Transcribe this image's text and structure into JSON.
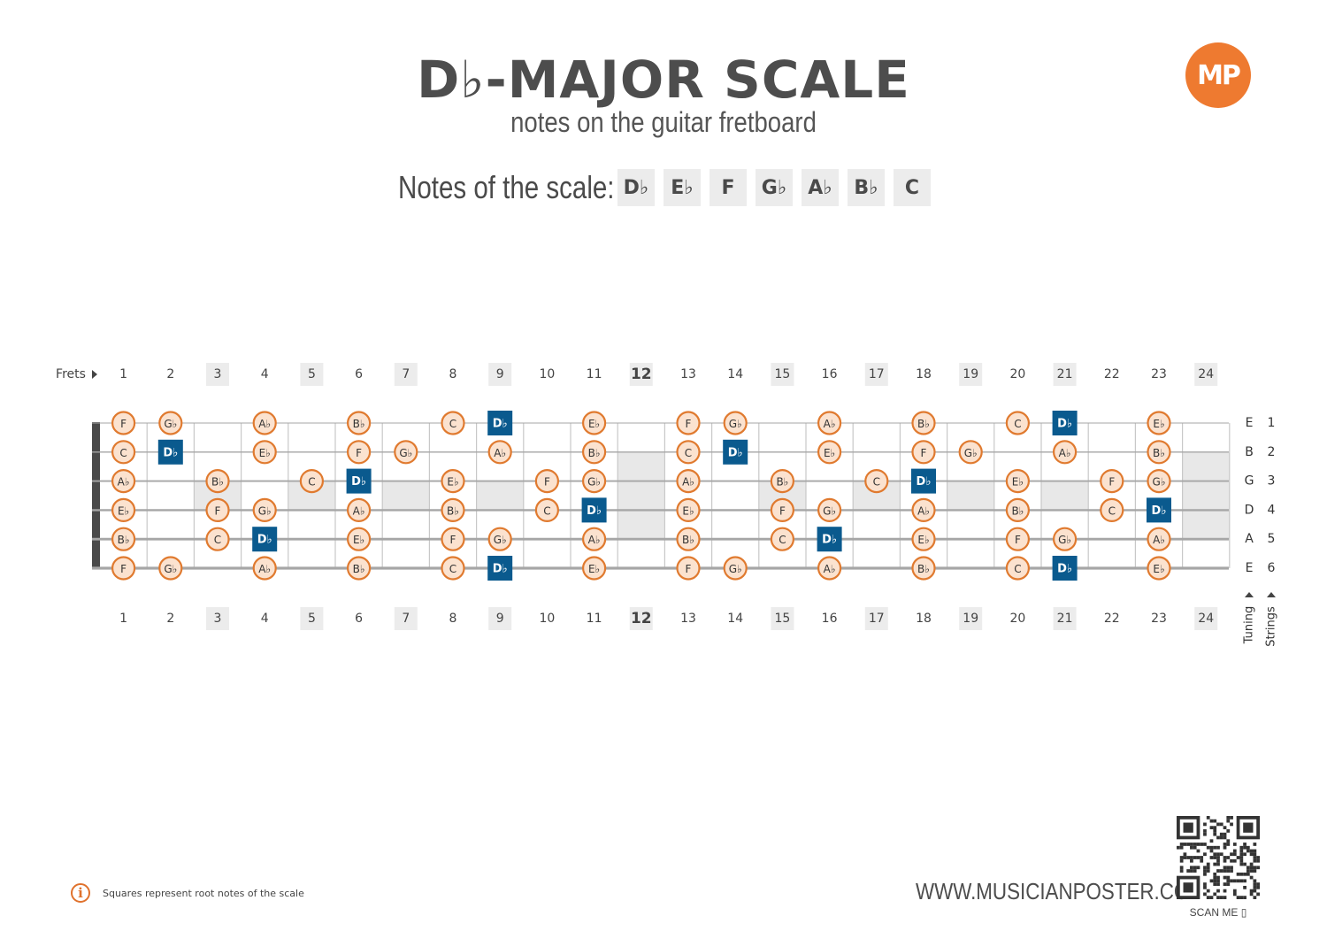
{
  "title": "D♭-MAJOR SCALE",
  "subtitle": "notes on the guitar fretboard",
  "logo_text": "MP",
  "scale": {
    "label": "Notes of the scale:",
    "notes": [
      "D♭",
      "E♭",
      "F",
      "G♭",
      "A♭",
      "B♭",
      "C"
    ]
  },
  "fretboard": {
    "frets_label": "Frets",
    "fret_numbers": [
      "1",
      "2",
      "3",
      "4",
      "5",
      "6",
      "7",
      "8",
      "9",
      "10",
      "11",
      "12",
      "13",
      "14",
      "15",
      "16",
      "17",
      "18",
      "19",
      "20",
      "21",
      "22",
      "23",
      "24"
    ],
    "highlighted_frets": [
      3,
      5,
      7,
      9,
      12,
      15,
      17,
      19,
      21,
      24
    ],
    "inlay_frets": [
      3,
      5,
      7,
      9,
      12,
      15,
      17,
      19,
      21,
      24
    ],
    "double_inlay_frets": [
      12,
      24
    ],
    "strings": [
      {
        "tuning": "E",
        "number": "1",
        "notes": [
          "F",
          "G♭",
          "",
          "A♭",
          "",
          "B♭",
          "",
          "C",
          "D♭",
          "",
          "E♭",
          "",
          "F",
          "G♭",
          "",
          "A♭",
          "",
          "B♭",
          "",
          "C",
          "D♭",
          "",
          "E♭",
          ""
        ]
      },
      {
        "tuning": "B",
        "number": "2",
        "notes": [
          "C",
          "D♭",
          "",
          "E♭",
          "",
          "F",
          "G♭",
          "",
          "A♭",
          "",
          "B♭",
          "",
          "C",
          "D♭",
          "",
          "E♭",
          "",
          "F",
          "G♭",
          "",
          "A♭",
          "",
          "B♭",
          ""
        ]
      },
      {
        "tuning": "G",
        "number": "3",
        "notes": [
          "A♭",
          "",
          "B♭",
          "",
          "C",
          "D♭",
          "",
          "E♭",
          "",
          "F",
          "G♭",
          "",
          "A♭",
          "",
          "B♭",
          "",
          "C",
          "D♭",
          "",
          "E♭",
          "",
          "F",
          "G♭",
          ""
        ]
      },
      {
        "tuning": "D",
        "number": "4",
        "notes": [
          "E♭",
          "",
          "F",
          "G♭",
          "",
          "A♭",
          "",
          "B♭",
          "",
          "C",
          "D♭",
          "",
          "E♭",
          "",
          "F",
          "G♭",
          "",
          "A♭",
          "",
          "B♭",
          "",
          "C",
          "D♭",
          ""
        ]
      },
      {
        "tuning": "A",
        "number": "5",
        "notes": [
          "B♭",
          "",
          "C",
          "D♭",
          "",
          "E♭",
          "",
          "F",
          "G♭",
          "",
          "A♭",
          "",
          "B♭",
          "",
          "C",
          "D♭",
          "",
          "E♭",
          "",
          "F",
          "G♭",
          "",
          "A♭",
          ""
        ]
      },
      {
        "tuning": "E",
        "number": "6",
        "notes": [
          "F",
          "G♭",
          "",
          "A♭",
          "",
          "B♭",
          "",
          "C",
          "D♭",
          "",
          "E♭",
          "",
          "F",
          "G♭",
          "",
          "A♭",
          "",
          "B♭",
          "",
          "C",
          "D♭",
          "",
          "E♭",
          ""
        ]
      }
    ],
    "root_note": "D♭",
    "tuning_label": "Tuning",
    "strings_label": "Strings"
  },
  "colors": {
    "root_fill": "#0a5a8e",
    "note_fill": "#fbe2cf",
    "note_stroke": "#e07a2f",
    "highlight": "#ececec",
    "logo": "#ee7a30"
  },
  "footer": {
    "info_icon": "info-icon",
    "note": "Squares represent root notes of the scale",
    "website": "WWW.MUSICIANPOSTER.COM",
    "scan_label": "SCAN ME"
  }
}
